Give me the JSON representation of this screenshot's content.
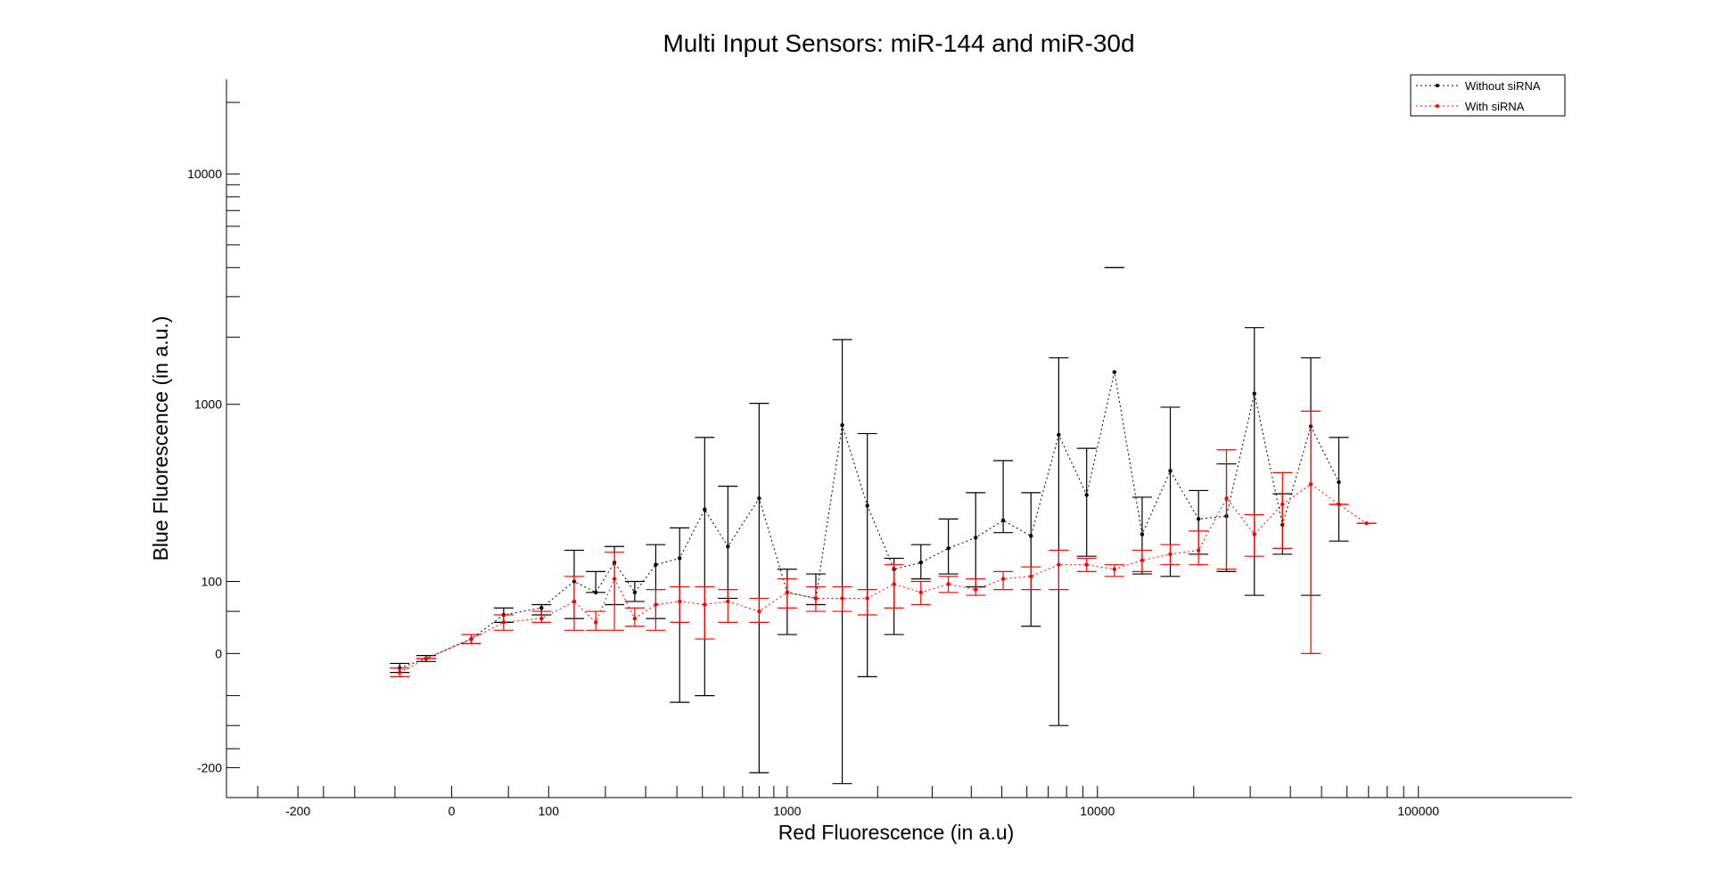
{
  "chart_data": {
    "type": "line",
    "title": "Multi Input Sensors: miR-144 and miR-30d",
    "xlabel": "Red Fluorescence (in a.u)",
    "ylabel": "Blue Fluorescence (in a.u.)",
    "x_scale": "symlog",
    "y_scale": "symlog",
    "xlim": [
      -400,
      300000
    ],
    "ylim": [
      -300,
      25000
    ],
    "x_ticks": [
      -200,
      0,
      100,
      1000,
      10000,
      100000
    ],
    "x_tick_labels": [
      "-200",
      "0",
      "100",
      "1000",
      "10000",
      "100000"
    ],
    "y_ticks": [
      -200,
      0,
      100,
      1000,
      10000
    ],
    "y_tick_labels": [
      "-200",
      "0",
      "100",
      "1000",
      "10000"
    ],
    "grid": false,
    "legend_position": "top-right",
    "series": [
      {
        "name": "Without siRNA",
        "color": "#000000",
        "linestyle": "dotted",
        "x": [
          -45,
          -20,
          15,
          45,
          90,
          140,
          180,
          220,
          270,
          330,
          410,
          510,
          620,
          800,
          1000,
          1250,
          1530,
          1850,
          2260,
          2760,
          3380,
          4130,
          5050,
          6180,
          7560,
          9250,
          11300,
          13800,
          16900,
          20700,
          25300,
          30900,
          37800,
          46300,
          56600
        ],
        "y": [
          -15,
          -5,
          15,
          45,
          55,
          100,
          80,
          140,
          80,
          135,
          150,
          300,
          180,
          345,
          80,
          70,
          800,
          315,
          125,
          140,
          175,
          205,
          260,
          210,
          720,
          360,
          1400,
          215,
          480,
          265,
          275,
          1120,
          245,
          790,
          420
        ],
        "err_low": [
          -10,
          -2,
          20,
          35,
          45,
          40,
          80,
          60,
          65,
          40,
          -60,
          -50,
          70,
          -215,
          20,
          60,
          -250,
          -25,
          20,
          105,
          115,
          90,
          220,
          30,
          -100,
          155,
          4000,
          115,
          110,
          160,
          120,
          75,
          160,
          75,
          195
        ],
        "err_high": [
          -20,
          -8,
          10,
          55,
          60,
          170,
          120,
          180,
          100,
          185,
          235,
          700,
          400,
          1010,
          125,
          115,
          1950,
          730,
          150,
          185,
          265,
          370,
          540,
          370,
          1620,
          620,
          4000,
          350,
          970,
          380,
          520,
          2200,
          365,
          1620,
          700
        ]
      },
      {
        "name": "With siRNA",
        "color": "#ff0000",
        "linestyle": "dotted",
        "x": [
          -45,
          -20,
          15,
          45,
          90,
          140,
          180,
          220,
          270,
          330,
          410,
          510,
          620,
          800,
          1000,
          1250,
          1530,
          1850,
          2260,
          2760,
          3380,
          4130,
          5050,
          6180,
          7560,
          9250,
          11300,
          13800,
          16900,
          20700,
          25300,
          30900,
          37800,
          46300,
          56600,
          69000
        ],
        "y": [
          -20,
          -5,
          15,
          35,
          40,
          65,
          35,
          105,
          40,
          60,
          65,
          60,
          65,
          50,
          80,
          70,
          70,
          70,
          95,
          80,
          95,
          85,
          105,
          110,
          135,
          135,
          125,
          145,
          160,
          170,
          345,
          215,
          320,
          410,
          320,
          250
        ],
        "err_low": [
          -25,
          -5,
          10,
          25,
          35,
          25,
          25,
          25,
          30,
          25,
          35,
          15,
          35,
          35,
          55,
          50,
          50,
          45,
          55,
          60,
          80,
          75,
          85,
          85,
          85,
          120,
          110,
          120,
          135,
          135,
          125,
          155,
          175,
          0,
          320,
          250
        ],
        "err_high": [
          -15,
          -5,
          20,
          45,
          50,
          110,
          50,
          165,
          55,
          85,
          90,
          90,
          85,
          70,
          105,
          90,
          90,
          85,
          135,
          100,
          110,
          105,
          120,
          130,
          170,
          150,
          135,
          170,
          185,
          225,
          610,
          280,
          470,
          930,
          320,
          250
        ]
      }
    ]
  }
}
